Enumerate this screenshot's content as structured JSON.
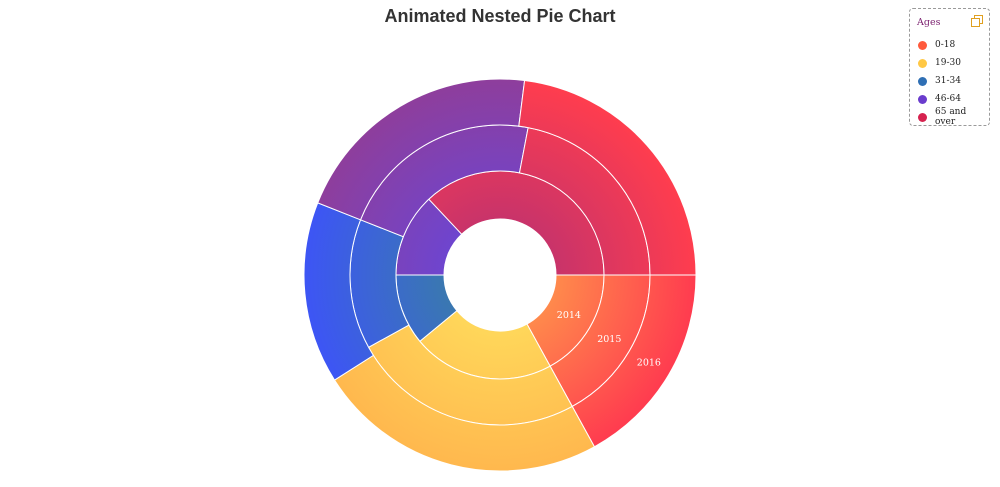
{
  "chart_data": {
    "type": "pie",
    "variant": "nested-donut",
    "title": "Animated Nested Pie Chart",
    "categories": [
      "0-18",
      "19-30",
      "31-34",
      "46-64",
      "65 and over"
    ],
    "colors": {
      "0-18": "#ff5a3c",
      "19-30": "#ffc845",
      "31-34": "#2f6fb4",
      "46-64": "#6a3ccd",
      "65 and over": "#d6224f"
    },
    "gradient_colors": {
      "0-18": [
        "#ff8a4c",
        "#ff3b4f"
      ],
      "19-30": [
        "#ffd75a",
        "#ffb84e"
      ],
      "31-34": [
        "#3a78b0",
        "#3d55f5"
      ],
      "46-64": [
        "#6e45cf",
        "#8e3e9c"
      ],
      "65 and over": [
        "#c8336a",
        "#ff3d4e"
      ]
    },
    "series": [
      {
        "name": "2014",
        "values": [
          17,
          22,
          11,
          13,
          37
        ]
      },
      {
        "name": "2015",
        "values": [
          17,
          25,
          14,
          22,
          22
        ]
      },
      {
        "name": "2016",
        "values": [
          17,
          24,
          15,
          21,
          23
        ]
      }
    ],
    "legend": {
      "title": "Ages",
      "position": "top-right"
    }
  }
}
